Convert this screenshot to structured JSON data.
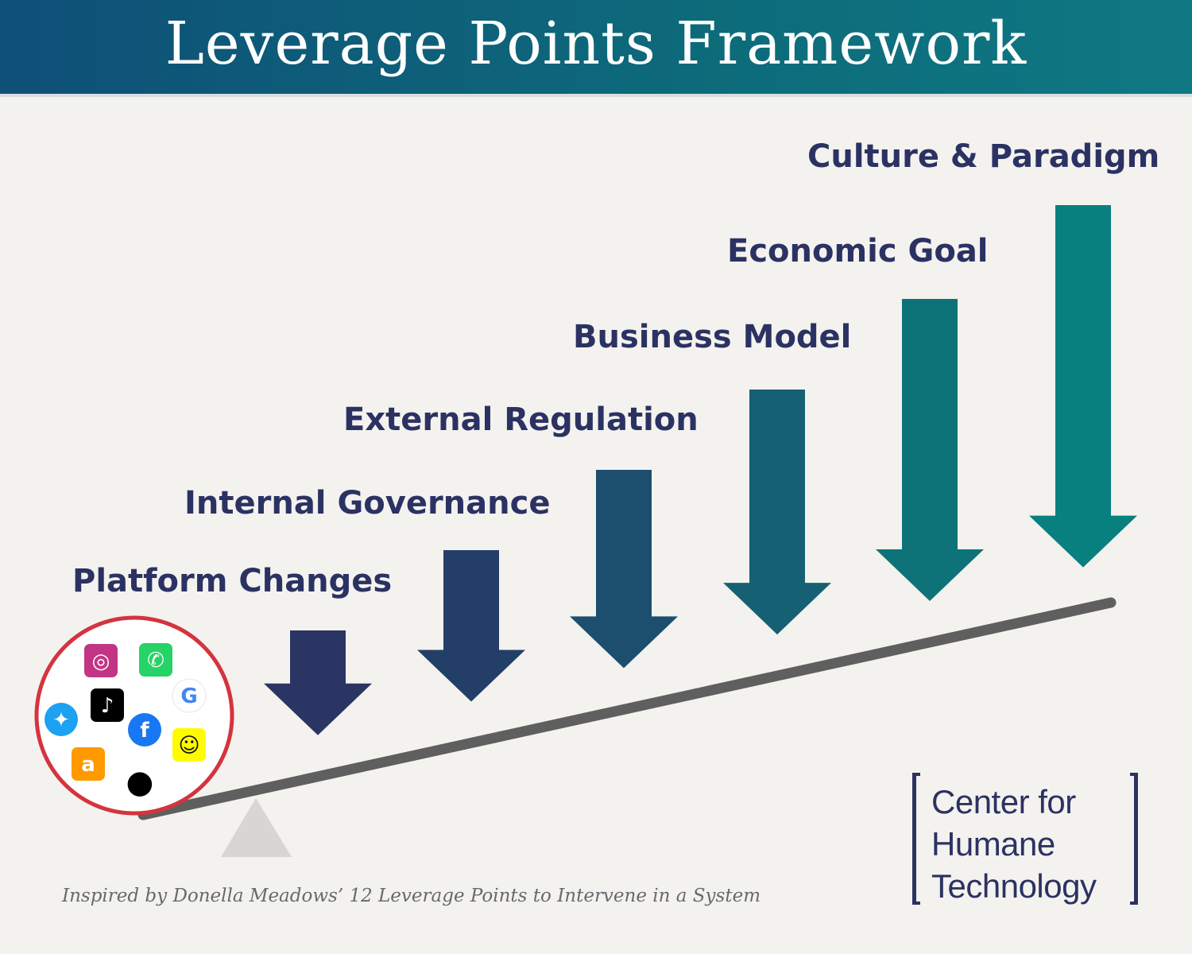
{
  "header": {
    "title": "Leverage Points Framework"
  },
  "leverage_points": [
    {
      "label": "Platform Changes",
      "color": "#2b3563"
    },
    {
      "label": "Internal Governance",
      "color": "#233f68"
    },
    {
      "label": "External Regulation",
      "color": "#1c4e6e"
    },
    {
      "label": "Business Model",
      "color": "#156173"
    },
    {
      "label": "Economic Goal",
      "color": "#0e7379"
    },
    {
      "label": "Culture & Paradigm",
      "color": "#08807f"
    }
  ],
  "platform_icons": [
    {
      "name": "instagram-icon",
      "glyph": "◎",
      "bg": "#c13584",
      "fg": "#ffffff"
    },
    {
      "name": "whatsapp-icon",
      "glyph": "✆",
      "bg": "#25d366",
      "fg": "#ffffff"
    },
    {
      "name": "google-icon",
      "glyph": "G",
      "bg": "#ffffff",
      "fg": "#4285f4"
    },
    {
      "name": "tiktok-icon",
      "glyph": "♪",
      "bg": "#000000",
      "fg": "#ffffff"
    },
    {
      "name": "twitter-icon",
      "glyph": "✦",
      "bg": "#1da1f2",
      "fg": "#ffffff"
    },
    {
      "name": "facebook-icon",
      "glyph": "f",
      "bg": "#1877f2",
      "fg": "#ffffff"
    },
    {
      "name": "snapchat-icon",
      "glyph": "☺",
      "bg": "#fffc00",
      "fg": "#ffffff"
    },
    {
      "name": "amazon-icon",
      "glyph": "a",
      "bg": "#ff9900",
      "fg": "#ffffff"
    },
    {
      "name": "apple-icon",
      "glyph": "●",
      "bg": "none",
      "fg": "#000000"
    }
  ],
  "colors": {
    "title_text": "#2b3263",
    "lever_beam": "#5f5f5f",
    "fulcrum": "#d7d6d3",
    "platform_circle": "#d4343f"
  },
  "footnote": "Inspired by Donella Meadows’ 12 Leverage Points to Intervene in a System",
  "logo": {
    "line1": "Center for",
    "line2": "Humane",
    "line3": "Technology"
  }
}
